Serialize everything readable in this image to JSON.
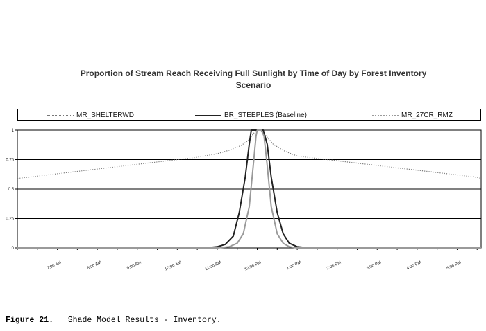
{
  "caption": {
    "label": "Figure 21.",
    "text": "Shade Model Results - Inventory."
  },
  "chart_data": {
    "type": "line",
    "title": "Proportion of Stream Reach Receiving Full Sunlight by Time of Day by Forest Inventory Scenario",
    "xlabel": "",
    "ylabel": "",
    "ylim": [
      0,
      1
    ],
    "yticks": [
      "0",
      "0.25",
      "0.5",
      "0.75",
      "1"
    ],
    "xticks": [
      "7:00 AM",
      "8:00 AM",
      "9:00 AM",
      "10:00 AM",
      "11:00 AM",
      "12:00 PM",
      "1:00 PM",
      "2:00 PM",
      "3:00 PM",
      "4:00 PM",
      "5:00 PM"
    ],
    "xlim_hours": [
      6.0,
      17.6
    ],
    "legend_position": "top",
    "grid": "horizontal",
    "series": [
      {
        "name": "MR_SHELTERWD",
        "style": "dotted",
        "color": "#777777",
        "x_hours": [
          6.0,
          6.5,
          7.0,
          7.5,
          8.0,
          8.5,
          9.0,
          9.5,
          10.0,
          10.5,
          11.0,
          11.3,
          11.6,
          11.8,
          11.9,
          12.0,
          12.1,
          12.2,
          12.4,
          12.7,
          13.0,
          13.5,
          14.0,
          14.5,
          15.0,
          15.5,
          16.0,
          16.5,
          17.0,
          17.5,
          17.6
        ],
        "values": [
          0.59,
          0.61,
          0.63,
          0.65,
          0.67,
          0.69,
          0.71,
          0.73,
          0.75,
          0.77,
          0.8,
          0.83,
          0.87,
          0.92,
          0.97,
          1.0,
          1.0,
          0.96,
          0.88,
          0.82,
          0.78,
          0.76,
          0.74,
          0.72,
          0.7,
          0.68,
          0.66,
          0.64,
          0.62,
          0.6,
          0.59
        ]
      },
      {
        "name": "BR_STEEPLES (Baseline)",
        "style": "solid",
        "color": "#222222",
        "x_hours": [
          6.0,
          10.7,
          11.0,
          11.2,
          11.4,
          11.55,
          11.7,
          11.8,
          11.85,
          11.95,
          12.05,
          12.15,
          12.25,
          12.35,
          12.5,
          12.65,
          12.8,
          13.0,
          13.3,
          17.6
        ],
        "values": [
          0.0,
          0.0,
          0.01,
          0.03,
          0.1,
          0.3,
          0.6,
          0.88,
          1.0,
          1.0,
          1.0,
          1.0,
          0.88,
          0.6,
          0.3,
          0.12,
          0.04,
          0.01,
          0.0,
          0.0
        ]
      },
      {
        "name": "MR_27CR_RMZ",
        "style": "dashed-fine",
        "color": "#9a9a9a",
        "x_hours": [
          6.0,
          11.0,
          11.3,
          11.5,
          11.65,
          11.8,
          11.9,
          11.97,
          12.0,
          12.1,
          12.17,
          12.25,
          12.35,
          12.5,
          12.65,
          12.8,
          13.0,
          17.6
        ],
        "values": [
          0.0,
          0.0,
          0.01,
          0.04,
          0.12,
          0.35,
          0.7,
          0.95,
          1.0,
          1.0,
          0.95,
          0.7,
          0.35,
          0.12,
          0.04,
          0.01,
          0.0,
          0.0
        ]
      }
    ]
  }
}
